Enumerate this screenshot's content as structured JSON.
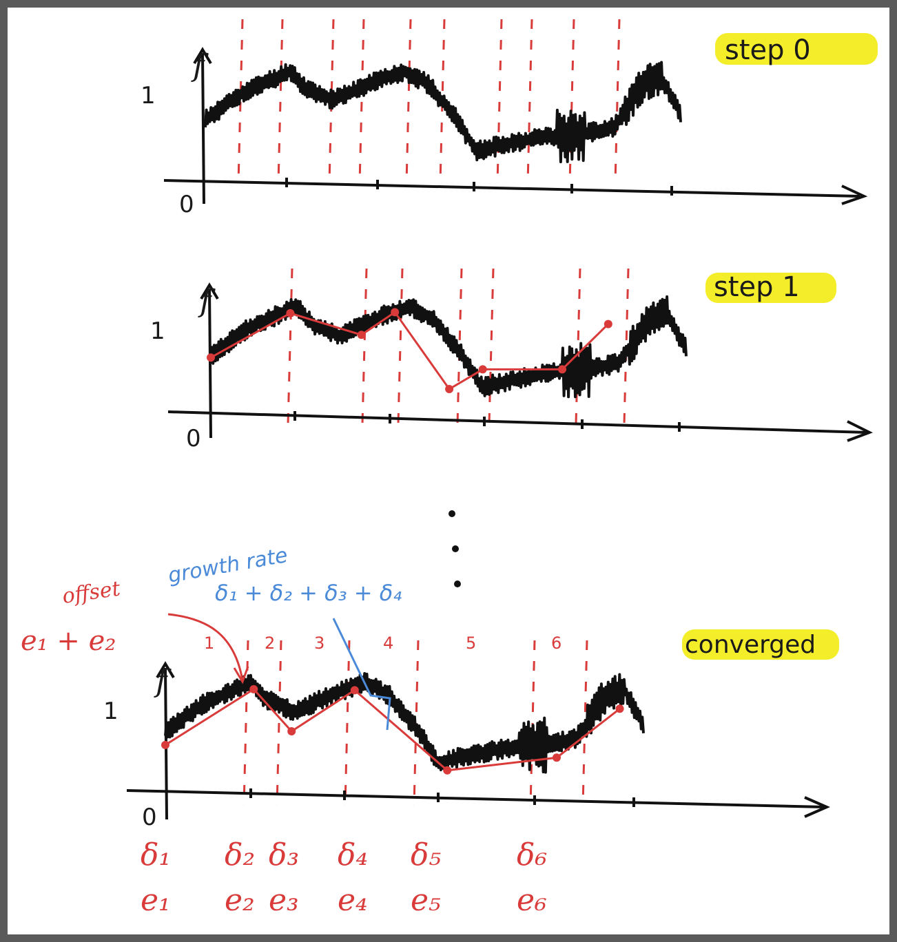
{
  "colors": {
    "curve": "#111111",
    "axis": "#111111",
    "changepoint": "#d93a3a",
    "fit": "#d93a3a",
    "annotation_blue": "#4a8ad8",
    "highlight": "#f4ee2a",
    "frame": "#5a5a5a"
  },
  "panels": [
    {
      "id": "step0",
      "tag": "step 0",
      "y_label": "f",
      "y_tick": "1",
      "origin_label": "0",
      "changepoints": [
        352,
        410,
        484,
        528,
        596,
        645,
        728,
        772,
        833,
        899
      ],
      "fit": []
    },
    {
      "id": "step1",
      "tag": "step 1",
      "y_label": "f",
      "y_tick": "1",
      "origin_label": "0",
      "changepoints": [
        424,
        532,
        584,
        670,
        716,
        842,
        912
      ],
      "fit": [
        [
          0.0,
          0.6
        ],
        [
          0.19,
          1.05
        ],
        [
          0.36,
          0.83
        ],
        [
          0.44,
          1.06
        ],
        [
          0.57,
          0.28
        ],
        [
          0.65,
          0.48
        ],
        [
          0.84,
          0.48
        ],
        [
          0.95,
          0.94
        ]
      ]
    },
    {
      "id": "converged",
      "tag": "converged",
      "y_label": "f",
      "y_tick": "1",
      "origin_label": "0",
      "changepoints": [
        360,
        408,
        507,
        607,
        776,
        852
      ],
      "segment_numbers": [
        "1",
        "2",
        "3",
        "4",
        "5",
        "6"
      ],
      "fit": [
        [
          0.0,
          0.48
        ],
        [
          0.21,
          1.05
        ],
        [
          0.3,
          0.62
        ],
        [
          0.45,
          1.04
        ],
        [
          0.67,
          0.22
        ],
        [
          0.93,
          0.35
        ],
        [
          1.08,
          0.85
        ]
      ]
    }
  ],
  "annotations": {
    "offset_label": "offset",
    "offset_sum": "e₁ + e₂",
    "growth_label": "growth rate",
    "growth_sum": "δ₁ + δ₂ + δ₃ + δ₄",
    "ellipsis": "⋮"
  },
  "bottom_labels": {
    "deltas": [
      "δ₁",
      "δ₂",
      "δ₃",
      "δ₄",
      "δ₅",
      "δ₆"
    ],
    "offsets": [
      "e₁",
      "e₂",
      "e₃",
      "e₄",
      "e₅",
      "e₆"
    ]
  }
}
